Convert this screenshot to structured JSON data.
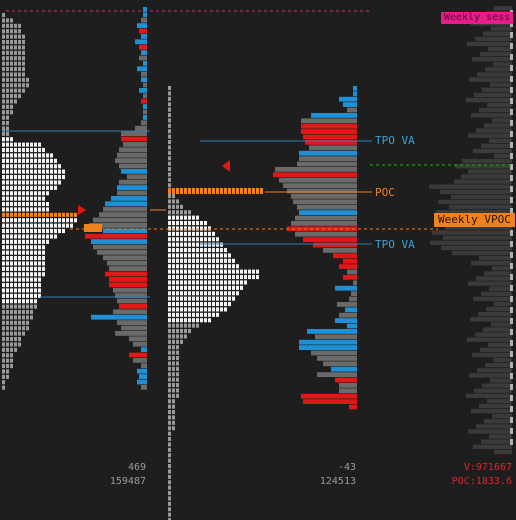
{
  "colors": {
    "background": "#1e1e1e",
    "tpo_white": "#f5f5f5",
    "tpo_gray": "#9a9a9a",
    "volume_blue": "#1f8fd6",
    "volume_red": "#e01818",
    "volume_gray": "#6a6a6a",
    "poc_orange": "#f0821e",
    "va_line": "#2e7fb8",
    "green_dashed": "#22b022",
    "pink_tag": "#e81c8a"
  },
  "labels": {
    "tpo_va_top": "TPO VA",
    "poc": "POC",
    "tpo_va_bottom": "TPO VA",
    "weekly_vpoc": "Weekly VPOC",
    "weekly_tag": "Weekly sess"
  },
  "footer": {
    "profile1_delta": "469",
    "profile1_volume": "159487",
    "profile2_delta": "-43",
    "profile2_volume": "124513",
    "total_volume": "V:971667",
    "poc_price": "POC:1833.6"
  }
}
